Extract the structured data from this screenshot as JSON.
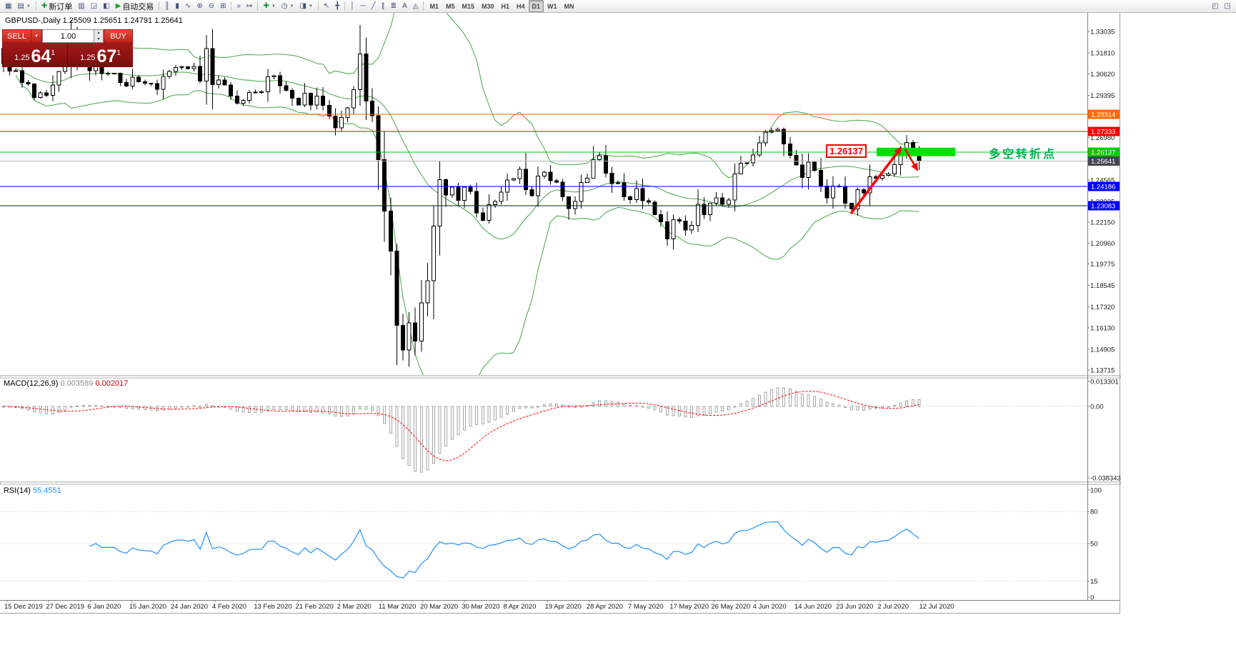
{
  "app": {
    "toolbar": {
      "dropdown_icon": "▼",
      "items": [
        {
          "t": "btn",
          "name": "new-chart-button",
          "g": "▦"
        },
        {
          "t": "btn",
          "name": "profiles-button",
          "g": "▤",
          "dd": true
        },
        {
          "t": "sep"
        },
        {
          "t": "btn",
          "name": "new-order-button",
          "g": "✚",
          "gc": "#1d8f3a",
          "label": "新订单"
        },
        {
          "t": "btn",
          "name": "market-watch-button",
          "g": "▥"
        },
        {
          "t": "btn",
          "name": "data-window-button",
          "g": "◲"
        },
        {
          "t": "btn",
          "name": "navigator-button",
          "g": "◧"
        },
        {
          "t": "btn",
          "name": "autotrade-button",
          "g": "▶",
          "gc": "#1fa02c",
          "label": "自动交易"
        },
        {
          "t": "sep"
        },
        {
          "t": "btn",
          "name": "bar-chart-button",
          "g": "║"
        },
        {
          "t": "btn",
          "name": "candlestick-chart-button",
          "g": "▮"
        },
        {
          "t": "btn",
          "name": "line-chart-button",
          "g": "∿"
        },
        {
          "t": "btn",
          "name": "zoom-in-button",
          "g": "⊕"
        },
        {
          "t": "btn",
          "name": "zoom-out-button",
          "g": "⊖"
        },
        {
          "t": "btn",
          "name": "tile-windows-button",
          "g": "⊞"
        },
        {
          "t": "sep"
        },
        {
          "t": "btn",
          "name": "auto-scroll-button",
          "g": "»"
        },
        {
          "t": "btn",
          "name": "chart-shift-button",
          "g": "↦"
        },
        {
          "t": "sep"
        },
        {
          "t": "btn",
          "name": "indicators-button",
          "g": "✚",
          "gc": "#1d8f3a",
          "dd": true
        },
        {
          "t": "btn",
          "name": "periods-button",
          "g": "◷",
          "dd": true
        },
        {
          "t": "btn",
          "name": "templates-button",
          "g": "◨",
          "dd": true
        },
        {
          "t": "sep"
        },
        {
          "t": "btn",
          "name": "cursor-button",
          "g": "↖"
        },
        {
          "t": "btn",
          "name": "crosshair-button",
          "g": "╋"
        },
        {
          "t": "sep"
        },
        {
          "t": "btn",
          "name": "vertical-line-button",
          "g": "│"
        },
        {
          "t": "btn",
          "name": "horizontal-line-button",
          "g": "─"
        },
        {
          "t": "btn",
          "name": "trendline-button",
          "g": "╱"
        },
        {
          "t": "btn",
          "name": "channel-button",
          "g": "∥"
        },
        {
          "t": "btn",
          "name": "fibonacci-button",
          "g": "≣"
        },
        {
          "t": "btn",
          "name": "text-button",
          "g": "A"
        },
        {
          "t": "btn",
          "name": "arrow-objects-button",
          "g": "◬"
        },
        {
          "t": "sep"
        }
      ],
      "timeframes": [
        "M1",
        "M5",
        "M15",
        "M30",
        "H1",
        "H4",
        "D1",
        "W1",
        "MN"
      ],
      "active_timeframe": "D1",
      "right_items": [
        {
          "name": "chart-back-button",
          "g": "◰"
        },
        {
          "name": "chart-forward-button",
          "g": "◳"
        }
      ]
    },
    "chart_header": {
      "symbol_line": "GBPUSD-,Daily 1.25509 1.25651 1.24791 1.25641"
    },
    "one_click": {
      "sell_label": "SELL",
      "buy_label": "BUY",
      "volume": "1.00",
      "dropdown_icon": "▼",
      "volume_up_icon": "▲",
      "volume_down_icon": "▼",
      "sell_price_small": "1.25",
      "sell_price_big": "64",
      "sell_price_pip": "1",
      "buy_price_small": "1.25",
      "buy_price_big": "67",
      "buy_price_pip": "1"
    },
    "annotations": {
      "zone_price_label": "1.26137",
      "zone_text": "多空转折点"
    }
  },
  "chart_data": {
    "type": "candlestick",
    "symbol": "GBPUSD-",
    "timeframe": "Daily",
    "ohlc_header": {
      "open": "1.25509",
      "high": "1.25651",
      "low": "1.24791",
      "close": "1.25641"
    },
    "price_axis": {
      "max": 1.33035,
      "min": 1.13715,
      "labels": [
        "1.33035",
        "1.31810",
        "1.30620",
        "1.29395",
        "1.26980",
        "1.24565",
        "1.23325",
        "1.22150",
        "1.20960",
        "1.19775",
        "1.18545",
        "1.17320",
        "1.16130",
        "1.14905",
        "1.13715"
      ]
    },
    "first_open": 1.3205,
    "closes": [
      1.312,
      1.3078,
      1.308,
      1.3012,
      1.3003,
      1.2926,
      1.2953,
      1.2938,
      1.2997,
      1.3075,
      1.3112,
      1.3257,
      1.315,
      1.3142,
      1.308,
      1.3119,
      1.3064,
      1.3066,
      1.3065,
      1.3012,
      1.2991,
      1.3042,
      1.3016,
      1.3009,
      1.3005,
      1.2973,
      1.3047,
      1.3075,
      1.3097,
      1.3102,
      1.3091,
      1.3104,
      1.302,
      1.3206,
      1.2999,
      1.3026,
      1.2997,
      1.2934,
      1.2894,
      1.2911,
      1.2954,
      1.2957,
      1.2959,
      1.3045,
      1.305,
      1.2994,
      1.2967,
      1.2922,
      1.2884,
      1.2951,
      1.2884,
      1.2935,
      1.2882,
      1.2821,
      1.2753,
      1.2812,
      1.2867,
      1.2971,
      1.3176,
      1.2907,
      1.2823,
      1.2571,
      1.2278,
      1.205,
      1.1626,
      1.1486,
      1.164,
      1.1536,
      1.1754,
      1.188,
      1.2192,
      1.2458,
      1.237,
      1.2415,
      1.234,
      1.2415,
      1.239,
      1.2268,
      1.2225,
      1.2315,
      1.2334,
      1.2387,
      1.2455,
      1.2464,
      1.2517,
      1.24,
      1.2367,
      1.2479,
      1.2501,
      1.2451,
      1.2443,
      1.236,
      1.2292,
      1.2334,
      1.2441,
      1.2466,
      1.2572,
      1.2595,
      1.2495,
      1.2436,
      1.2439,
      1.236,
      1.2343,
      1.2406,
      1.2337,
      1.233,
      1.2258,
      1.2218,
      1.212,
      1.223,
      1.2222,
      1.2171,
      1.2197,
      1.2318,
      1.2258,
      1.2323,
      1.2354,
      1.2317,
      1.2341,
      1.249,
      1.2551,
      1.2553,
      1.2599,
      1.2668,
      1.2728,
      1.2737,
      1.2745,
      1.2661,
      1.2597,
      1.2542,
      1.2469,
      1.2557,
      1.251,
      1.2422,
      1.2354,
      1.2421,
      1.2417,
      1.2323,
      1.2291,
      1.2401,
      1.2383,
      1.2474,
      1.2465,
      1.2483,
      1.2491,
      1.2544,
      1.2612,
      1.267,
      1.2619,
      1.2564
    ],
    "style": {
      "up_fill": "#ffffff",
      "down_fill": "#000000",
      "candle_stroke": "#000000",
      "bollinger_color": "#46a546"
    },
    "bollinger": {
      "period": 20,
      "deviation": 2
    },
    "hlines": [
      {
        "price": 1.28314,
        "label": "1.28314",
        "color": "#ff6a00"
      },
      {
        "price": 1.27333,
        "label": "1.27333",
        "color": "#ff0000"
      },
      {
        "price": 1.26137,
        "label": "1.26137",
        "color": "#00c800"
      },
      {
        "price": 1.24186,
        "label": "1.24186",
        "color": "#0000ff"
      },
      {
        "price": 1.23083,
        "label": "1.23083",
        "color": "#0000ff"
      }
    ],
    "current_price": {
      "value": 1.25641,
      "label": "1.25641",
      "badge_color": "#43464b",
      "line_color": "#b4b4b4"
    },
    "zone": {
      "price": 1.26137,
      "fill": "#00e000"
    },
    "trend_arrows_color": "#ff0000",
    "macd": {
      "name": "MACD(12,26,9)",
      "value_main": "0.003589",
      "value_signal": "0.002017",
      "fast": 12,
      "slow": 26,
      "signal": 9,
      "hist_color": "#a6a6a6",
      "signal_color": "#ff0000",
      "axis": {
        "max": 0.013301,
        "min": -0.038343,
        "labels": [
          {
            "v": 0.013301,
            "s": "0.013301"
          },
          {
            "v": 0,
            "s": "0.00"
          },
          {
            "v": -0.038343,
            "s": "-0.038343"
          }
        ]
      }
    },
    "rsi": {
      "name": "RSI(14)",
      "value": "55.4551",
      "period": 14,
      "line_color": "#1e90ff",
      "levels": [
        80,
        50,
        15
      ],
      "axis_labels": [
        {
          "v": 100,
          "s": "100"
        },
        {
          "v": 80,
          "s": "80"
        },
        {
          "v": 50,
          "s": "50"
        },
        {
          "v": 15,
          "s": "15"
        },
        {
          "v": 0,
          "s": "0"
        }
      ]
    },
    "date_labels": [
      "15 Dec 2019",
      "27 Dec 2019",
      "6 Jan 2020",
      "15 Jan 2020",
      "24 Jan 2020",
      "4 Feb 2020",
      "13 Feb 2020",
      "21 Feb 2020",
      "2 Mar 2020",
      "11 Mar 2020",
      "20 Mar 2020",
      "30 Mar 2020",
      "8 Apr 2020",
      "19 Apr 2020",
      "28 Apr 2020",
      "7 May 2020",
      "17 May 2020",
      "26 May 2020",
      "4 Jun 2020",
      "14 Jun 2020",
      "23 Jun 2020",
      "2 Jul 2020",
      "12 Jul 2020"
    ]
  }
}
